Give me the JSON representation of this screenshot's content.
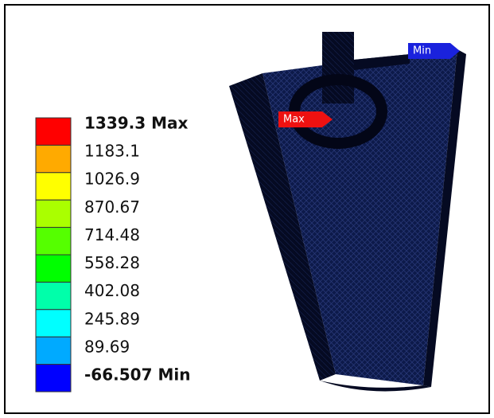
{
  "legend": {
    "labels": [
      "1339.3 Max",
      "1183.1",
      "1026.9",
      "870.67",
      "714.48",
      "558.28",
      "402.08",
      "245.89",
      "89.69",
      "-66.507 Min"
    ],
    "colors": [
      "#ff0000",
      "#ffaa00",
      "#ffff00",
      "#aaff00",
      "#55ff00",
      "#00ff00",
      "#00ffaa",
      "#00ffff",
      "#00aaff",
      "#0000ff"
    ]
  },
  "probes": {
    "max": "Max",
    "min": "Min"
  }
}
